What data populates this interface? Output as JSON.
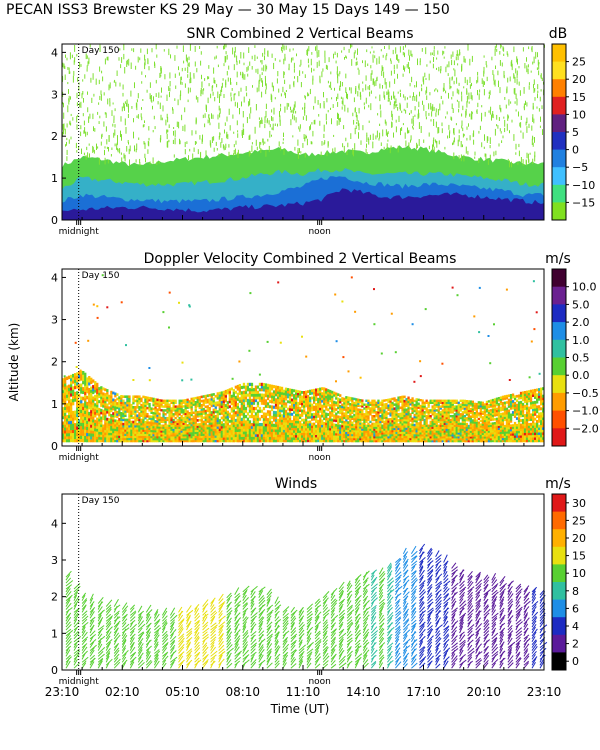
{
  "header": "PECAN ISS3 Brewster KS  29 May — 30 May 15 Days 149 — 150",
  "shared_x": {
    "xlabel": "Time (UT)",
    "tick_labels": [
      "23:10",
      "02:10",
      "05:10",
      "08:10",
      "11:10",
      "14:10",
      "17:10",
      "20:10",
      "23:10"
    ],
    "xlim_hours": [
      0,
      24
    ],
    "day_marker_label": "Day 150",
    "day_marker_hour": 0.83,
    "midnight_label": "midnight",
    "midnight_hour": 0.83,
    "noon_label": "noon",
    "noon_hour": 12.83
  },
  "chart_data": [
    {
      "type": "heatmap",
      "title": "SNR Combined 2 Vertical Beams",
      "unit": "dB",
      "ylabel": "",
      "ylim": [
        0,
        4.2
      ],
      "y_ticks": [
        "0",
        "1",
        "2",
        "3",
        "4"
      ],
      "colorbar_ticks": [
        "25",
        "20",
        "15",
        "10",
        "5",
        "0",
        "−5",
        "−10",
        "−15"
      ],
      "colorbar_colors": [
        "#ffc000",
        "#ffe020",
        "#ff8000",
        "#e02020",
        "#602080",
        "#2030c0",
        "#2080e0",
        "#40c0ff",
        "#40e080",
        "#80e020"
      ],
      "layers": [
        {
          "label": "strong",
          "color": "#2a1a9a",
          "tops": [
            0.22,
            0.25,
            0.28,
            0.3,
            0.3,
            0.28,
            0.25,
            0.22,
            0.25,
            0.3,
            0.32,
            0.35,
            0.4,
            0.5,
            0.75,
            0.65,
            0.55,
            0.55,
            0.58,
            0.6,
            0.6,
            0.55,
            0.5,
            0.45,
            0.4
          ]
        },
        {
          "label": "mid-blue",
          "color": "#1b6fd6",
          "tops": [
            0.45,
            0.6,
            0.55,
            0.5,
            0.48,
            0.45,
            0.45,
            0.45,
            0.5,
            0.55,
            0.6,
            0.7,
            0.8,
            1.0,
            1.05,
            0.9,
            0.85,
            0.8,
            0.85,
            0.85,
            0.8,
            0.75,
            0.7,
            0.6,
            0.6
          ]
        },
        {
          "label": "cyan",
          "color": "#35b0c8",
          "tops": [
            0.75,
            1.0,
            0.95,
            0.9,
            0.85,
            0.85,
            0.85,
            0.9,
            0.95,
            1.0,
            1.1,
            1.15,
            1.1,
            1.2,
            1.2,
            1.1,
            1.1,
            1.1,
            1.1,
            1.1,
            1.05,
            1.0,
            0.95,
            0.85,
            0.85
          ]
        },
        {
          "label": "weak-green",
          "color": "#56d24a",
          "tops": [
            1.3,
            1.5,
            1.45,
            1.35,
            1.3,
            1.4,
            1.45,
            1.5,
            1.55,
            1.6,
            1.65,
            1.7,
            1.55,
            1.6,
            1.65,
            1.6,
            1.7,
            1.75,
            1.7,
            1.6,
            1.5,
            1.45,
            1.4,
            1.35,
            1.35
          ]
        }
      ],
      "scatter_color": "#7fe033"
    },
    {
      "type": "heatmap",
      "title": "Doppler Velocity Combined 2 Vertical Beams",
      "unit": "m/s",
      "ylabel": "Altitude (km)",
      "ylim": [
        0,
        4.2
      ],
      "y_ticks": [
        "0",
        "1",
        "2",
        "3",
        "4"
      ],
      "colorbar_ticks": [
        "10.0",
        "5.0",
        "2.0",
        "1.0",
        "0.5",
        "0.0",
        "−0.5",
        "−1.0",
        "−2.0"
      ],
      "colorbar_colors": [
        "#400030",
        "#6a2090",
        "#1c2bc2",
        "#1e8ee6",
        "#30c0a0",
        "#58d032",
        "#e8e010",
        "#ff9c00",
        "#ff5000",
        "#e01818"
      ],
      "echo_tops": [
        1.5,
        1.7,
        1.3,
        1.1,
        1.1,
        1.0,
        1.0,
        1.1,
        1.2,
        1.4,
        1.4,
        1.3,
        1.2,
        1.3,
        1.1,
        1.0,
        1.0,
        1.1,
        1.0,
        1.0,
        1.0,
        0.95,
        1.1,
        1.2,
        1.3
      ],
      "palette": [
        "#58d032",
        "#e8e010",
        "#ffc000",
        "#ff9c00",
        "#ff5000",
        "#e01818",
        "#30c0a0",
        "#1e8ee6"
      ]
    },
    {
      "type": "scatter",
      "subtype": "wind-barbs",
      "title": "Winds",
      "unit": "m/s",
      "ylabel": "",
      "ylim": [
        0,
        4.8
      ],
      "y_ticks": [
        "0",
        "1",
        "2",
        "3",
        "4"
      ],
      "colorbar_ticks": [
        "30",
        "25",
        "20",
        "15",
        "10",
        "8",
        "6",
        "4",
        "2",
        "0"
      ],
      "colorbar_colors": [
        "#e01818",
        "#ff6a00",
        "#ffb000",
        "#e8e010",
        "#58d032",
        "#30c0a0",
        "#1e8ee6",
        "#1c2bc2",
        "#5a1a9a",
        "#000000"
      ],
      "column_tops": [
        2.7,
        2.0,
        1.8,
        1.7,
        1.6,
        1.5,
        1.6,
        1.8,
        2.0,
        2.2,
        2.2,
        1.6,
        1.6,
        2.0,
        2.3,
        2.6,
        2.7,
        3.2,
        3.3,
        3.0,
        2.6,
        2.5,
        2.4,
        2.2,
        2.1
      ],
      "column_speeds": [
        14,
        12,
        12,
        12,
        13,
        14,
        16,
        16,
        15,
        13,
        11,
        11,
        11,
        12,
        11,
        10,
        9,
        7,
        5,
        4,
        4,
        3,
        3,
        3,
        4
      ]
    }
  ]
}
